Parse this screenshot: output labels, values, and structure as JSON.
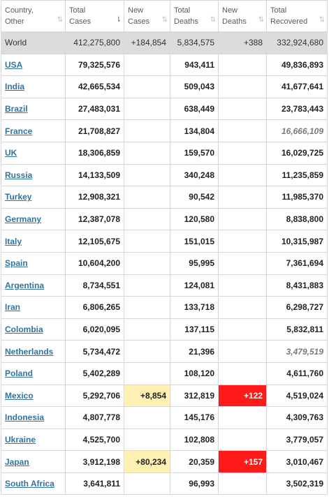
{
  "headers": [
    {
      "line1": "Country,",
      "line2": "Other",
      "sort": "⇅",
      "active": false
    },
    {
      "line1": "Total",
      "line2": "Cases",
      "sort": "⇂",
      "active": true
    },
    {
      "line1": "New",
      "line2": "Cases",
      "sort": "⇅",
      "active": false
    },
    {
      "line1": "Total",
      "line2": "Deaths",
      "sort": "⇅",
      "active": false
    },
    {
      "line1": "New",
      "line2": "Deaths",
      "sort": "⇅",
      "active": false
    },
    {
      "line1": "Total",
      "line2": "Recovered",
      "sort": "⇅",
      "active": false
    }
  ],
  "world": {
    "country": "World",
    "total_cases": "412,275,800",
    "new_cases": "+184,854",
    "total_deaths": "5,834,575",
    "new_deaths": "+388",
    "total_recovered": "332,924,680"
  },
  "rows": [
    {
      "country": "USA",
      "total_cases": "79,325,576",
      "new_cases": "",
      "total_deaths": "943,411",
      "new_deaths": "",
      "total_recovered": "49,836,893",
      "recovered_estimated": false
    },
    {
      "country": "India",
      "total_cases": "42,665,534",
      "new_cases": "",
      "total_deaths": "509,043",
      "new_deaths": "",
      "total_recovered": "41,677,641",
      "recovered_estimated": false
    },
    {
      "country": "Brazil",
      "total_cases": "27,483,031",
      "new_cases": "",
      "total_deaths": "638,449",
      "new_deaths": "",
      "total_recovered": "23,783,443",
      "recovered_estimated": false
    },
    {
      "country": "France",
      "total_cases": "21,708,827",
      "new_cases": "",
      "total_deaths": "134,804",
      "new_deaths": "",
      "total_recovered": "16,666,109",
      "recovered_estimated": true
    },
    {
      "country": "UK",
      "total_cases": "18,306,859",
      "new_cases": "",
      "total_deaths": "159,570",
      "new_deaths": "",
      "total_recovered": "16,029,725",
      "recovered_estimated": false
    },
    {
      "country": "Russia",
      "total_cases": "14,133,509",
      "new_cases": "",
      "total_deaths": "340,248",
      "new_deaths": "",
      "total_recovered": "11,235,859",
      "recovered_estimated": false
    },
    {
      "country": "Turkey",
      "total_cases": "12,908,321",
      "new_cases": "",
      "total_deaths": "90,542",
      "new_deaths": "",
      "total_recovered": "11,985,370",
      "recovered_estimated": false
    },
    {
      "country": "Germany",
      "total_cases": "12,387,078",
      "new_cases": "",
      "total_deaths": "120,580",
      "new_deaths": "",
      "total_recovered": "8,838,800",
      "recovered_estimated": false
    },
    {
      "country": "Italy",
      "total_cases": "12,105,675",
      "new_cases": "",
      "total_deaths": "151,015",
      "new_deaths": "",
      "total_recovered": "10,315,987",
      "recovered_estimated": false
    },
    {
      "country": "Spain",
      "total_cases": "10,604,200",
      "new_cases": "",
      "total_deaths": "95,995",
      "new_deaths": "",
      "total_recovered": "7,361,694",
      "recovered_estimated": false
    },
    {
      "country": "Argentina",
      "total_cases": "8,734,551",
      "new_cases": "",
      "total_deaths": "124,081",
      "new_deaths": "",
      "total_recovered": "8,431,883",
      "recovered_estimated": false
    },
    {
      "country": "Iran",
      "total_cases": "6,806,265",
      "new_cases": "",
      "total_deaths": "133,718",
      "new_deaths": "",
      "total_recovered": "6,298,727",
      "recovered_estimated": false
    },
    {
      "country": "Colombia",
      "total_cases": "6,020,095",
      "new_cases": "",
      "total_deaths": "137,115",
      "new_deaths": "",
      "total_recovered": "5,832,811",
      "recovered_estimated": false
    },
    {
      "country": "Netherlands",
      "total_cases": "5,734,472",
      "new_cases": "",
      "total_deaths": "21,396",
      "new_deaths": "",
      "total_recovered": "3,479,519",
      "recovered_estimated": true
    },
    {
      "country": "Poland",
      "total_cases": "5,402,289",
      "new_cases": "",
      "total_deaths": "108,120",
      "new_deaths": "",
      "total_recovered": "4,611,760",
      "recovered_estimated": false
    },
    {
      "country": "Mexico",
      "total_cases": "5,292,706",
      "new_cases": "+8,854",
      "total_deaths": "312,819",
      "new_deaths": "+122",
      "total_recovered": "4,519,024",
      "recovered_estimated": false
    },
    {
      "country": "Indonesia",
      "total_cases": "4,807,778",
      "new_cases": "",
      "total_deaths": "145,176",
      "new_deaths": "",
      "total_recovered": "4,309,763",
      "recovered_estimated": false
    },
    {
      "country": "Ukraine",
      "total_cases": "4,525,700",
      "new_cases": "",
      "total_deaths": "102,808",
      "new_deaths": "",
      "total_recovered": "3,779,057",
      "recovered_estimated": false
    },
    {
      "country": "Japan",
      "total_cases": "3,912,198",
      "new_cases": "+80,234",
      "total_deaths": "20,359",
      "new_deaths": "+157",
      "total_recovered": "3,010,467",
      "recovered_estimated": false
    },
    {
      "country": "South Africa",
      "total_cases": "3,641,811",
      "new_cases": "",
      "total_deaths": "96,993",
      "new_deaths": "",
      "total_recovered": "3,502,319",
      "recovered_estimated": false
    }
  ],
  "colors": {
    "link": "#33739e",
    "world_row_bg": "#dcdcdc",
    "new_cases_bg": "#fff0b3",
    "new_deaths_bg": "#ff1a1a",
    "border": "#d8d8d8"
  }
}
